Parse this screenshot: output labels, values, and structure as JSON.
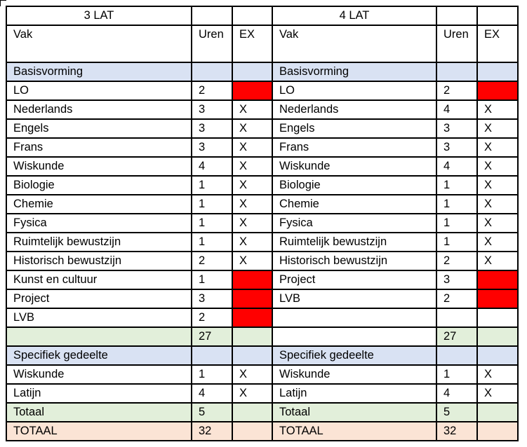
{
  "left": {
    "title": "3 LAT",
    "col_vak": "Vak",
    "col_uren": "Uren",
    "col_ex": "EX",
    "basis_label": "Basisvorming",
    "basis": [
      {
        "vak": "LO",
        "uren": "2",
        "ex": "",
        "red": true
      },
      {
        "vak": "Nederlands",
        "uren": "3",
        "ex": "X",
        "red": false
      },
      {
        "vak": "Engels",
        "uren": "3",
        "ex": "X",
        "red": false
      },
      {
        "vak": "Frans",
        "uren": "3",
        "ex": "X",
        "red": false
      },
      {
        "vak": "Wiskunde",
        "uren": "4",
        "ex": "X",
        "red": false
      },
      {
        "vak": "Biologie",
        "uren": "1",
        "ex": "X",
        "red": false
      },
      {
        "vak": "Chemie",
        "uren": "1",
        "ex": "X",
        "red": false
      },
      {
        "vak": "Fysica",
        "uren": "1",
        "ex": "X",
        "red": false
      },
      {
        "vak": "Ruimtelijk bewustzijn",
        "uren": "1",
        "ex": "X",
        "red": false
      },
      {
        "vak": "Historisch bewustzijn",
        "uren": "2",
        "ex": "X",
        "red": false
      },
      {
        "vak": "Kunst en cultuur",
        "uren": "1",
        "ex": "",
        "red": true
      },
      {
        "vak": "Project",
        "uren": "3",
        "ex": "",
        "red": true
      },
      {
        "vak": "LVB",
        "uren": "2",
        "ex": "",
        "red": true
      }
    ],
    "basis_subtotal": "27",
    "spec_label": "Specifiek gedeelte",
    "spec": [
      {
        "vak": "Wiskunde",
        "uren": "1",
        "ex": "X"
      },
      {
        "vak": "Latijn",
        "uren": "4",
        "ex": "X"
      }
    ],
    "totaal_label": "Totaal",
    "totaal": "5",
    "grand_label": "TOTAAL",
    "grand": "32"
  },
  "right": {
    "title": "4 LAT",
    "col_vak": "Vak",
    "col_uren": "Uren",
    "col_ex": "EX",
    "basis_label": "Basisvorming",
    "basis": [
      {
        "vak": "LO",
        "uren": "2",
        "ex": "",
        "red": true
      },
      {
        "vak": "Nederlands",
        "uren": "4",
        "ex": "X",
        "red": false
      },
      {
        "vak": "Engels",
        "uren": "3",
        "ex": "X",
        "red": false
      },
      {
        "vak": "Frans",
        "uren": "3",
        "ex": "X",
        "red": false
      },
      {
        "vak": "Wiskunde",
        "uren": "4",
        "ex": "X",
        "red": false
      },
      {
        "vak": "Biologie",
        "uren": "1",
        "ex": "X",
        "red": false
      },
      {
        "vak": "Chemie",
        "uren": "1",
        "ex": "X",
        "red": false
      },
      {
        "vak": "Fysica",
        "uren": "1",
        "ex": "X",
        "red": false
      },
      {
        "vak": "Ruimtelijk bewustzijn",
        "uren": "1",
        "ex": "X",
        "red": false
      },
      {
        "vak": "Historisch bewustzijn",
        "uren": "2",
        "ex": "X",
        "red": false
      },
      {
        "vak": "Project",
        "uren": "3",
        "ex": "",
        "red": true
      },
      {
        "vak": "LVB",
        "uren": "2",
        "ex": "",
        "red": true
      },
      {
        "vak": "",
        "uren": "",
        "ex": "",
        "red": false
      }
    ],
    "basis_subtotal": "27",
    "spec_label": "Specifiek gedeelte",
    "spec": [
      {
        "vak": "Wiskunde",
        "uren": "1",
        "ex": "X"
      },
      {
        "vak": "Latijn",
        "uren": "4",
        "ex": "X"
      }
    ],
    "totaal_label": "Totaal",
    "totaal": "5",
    "grand_label": "TOTAAL",
    "grand": "32"
  },
  "colors": {
    "section_blue": "#d9e2f3",
    "subtotal_green": "#e2efda",
    "grand_orange": "#fbe4d5",
    "no_exam_red": "#ff0000"
  }
}
